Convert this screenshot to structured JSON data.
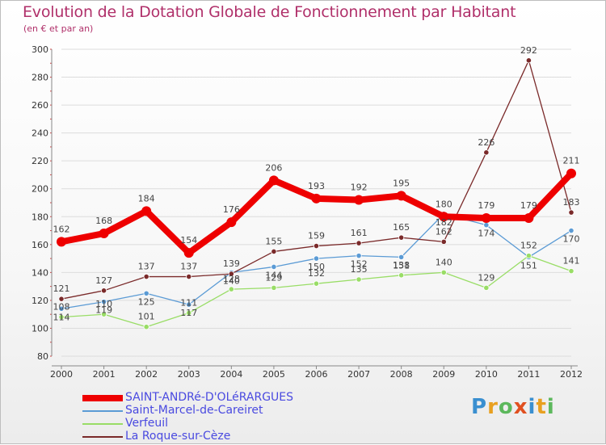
{
  "title": "Evolution de la Dotation Globale de Fonctionnement par Habitant",
  "subtitle": "(en € et par an)",
  "logo": "Proxiti",
  "chart_data": {
    "type": "line",
    "title": "Evolution de la Dotation Globale de Fonctionnement par Habitant",
    "ylabel": "(en € et par an)",
    "xlabel": "",
    "grid": "horizontal",
    "legend_position": "bottom-left",
    "categories": [
      "2000",
      "2001",
      "2002",
      "2003",
      "2004",
      "2005",
      "2006",
      "2007",
      "2008",
      "2009",
      "2010",
      "2011",
      "2012"
    ],
    "yticks": [
      80,
      100,
      120,
      140,
      160,
      180,
      200,
      220,
      240,
      260,
      280,
      300
    ],
    "ylim": [
      80,
      300
    ],
    "series": [
      {
        "name": "SAINT-ANDRé-D'OLéRARGUES",
        "color": "#ee0000",
        "values": [
          162,
          168,
          184,
          154,
          176,
          206,
          193,
          192,
          195,
          180,
          179,
          179,
          211
        ]
      },
      {
        "name": "Saint-Marcel-de-Careiret",
        "color": "#5b9bd5",
        "values": [
          114,
          119,
          125,
          117,
          140,
          144,
          150,
          152,
          151,
          182,
          174,
          151,
          170
        ]
      },
      {
        "name": "Verfeuil",
        "color": "#99dd66",
        "values": [
          108,
          110,
          101,
          111,
          128,
          129,
          132,
          135,
          138,
          140,
          129,
          152,
          141
        ]
      },
      {
        "name": "La Roque-sur-Cèze",
        "color": "#7a2a2a",
        "values": [
          121,
          127,
          137,
          137,
          139,
          155,
          159,
          161,
          165,
          162,
          226,
          292,
          183
        ]
      }
    ]
  }
}
